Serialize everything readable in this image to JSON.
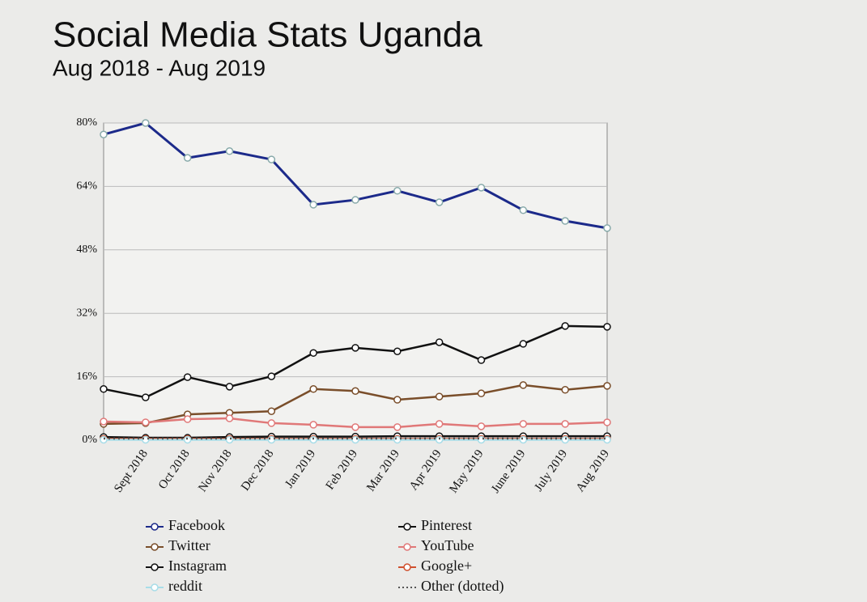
{
  "chart_data": {
    "type": "line",
    "title": "Social Media Stats Uganda",
    "subtitle": "Aug 2018 - Aug 2019",
    "categories": [
      null,
      "Sept 2018",
      "Oct 2018",
      "Nov 2018",
      "Dec 2018",
      "Jan 2019",
      "Feb 2019",
      "Mar 2019",
      "Apr 2019",
      "May 2019",
      "June 2019",
      "July 2019",
      "Aug 2019"
    ],
    "ylim": [
      0,
      80
    ],
    "yticks": [
      {
        "value": 0,
        "label": "0%"
      },
      {
        "value": 16,
        "label": "16%"
      },
      {
        "value": 32,
        "label": "32%"
      },
      {
        "value": 48,
        "label": "48%"
      },
      {
        "value": 64,
        "label": "64%"
      },
      {
        "value": 80,
        "label": "80%"
      }
    ],
    "grid": true,
    "series": [
      {
        "name": "Facebook",
        "color": "#1c2a8a",
        "values": [
          77.1,
          80,
          71.2,
          72.9,
          70.8,
          59.4,
          60.6,
          62.9,
          60,
          63.7,
          58,
          55.3,
          53.5
        ]
      },
      {
        "name": "Pinterest",
        "color": "#111111",
        "values": [
          12.9,
          10.8,
          15.9,
          13.5,
          16.1,
          22,
          23.3,
          22.4,
          24.7,
          20.2,
          24.3,
          28.8,
          28.6
        ]
      },
      {
        "name": "Twitter",
        "color": "#7a4e2a",
        "values": [
          4.1,
          4.3,
          6.5,
          6.9,
          7.3,
          12.9,
          12.4,
          10.2,
          11,
          11.8,
          13.9,
          12.7,
          13.7
        ]
      },
      {
        "name": "YouTube",
        "color": "#e07878",
        "values": [
          4.7,
          4.5,
          5.3,
          5.5,
          4.3,
          3.9,
          3.3,
          3.3,
          4.1,
          3.5,
          4.1,
          4.1,
          4.5
        ]
      },
      {
        "name": "Instagram",
        "color": "#111111",
        "values": [
          0.8,
          0.6,
          0.6,
          0.8,
          0.9,
          0.9,
          0.9,
          1,
          1,
          1,
          1,
          1,
          1
        ]
      },
      {
        "name": "Google+",
        "color": "#d0502e",
        "values": [
          0.3,
          0.3,
          0.3,
          0.3,
          0.3,
          0.3,
          0.3,
          0.3,
          0.3,
          0.3,
          0.3,
          0.3,
          0.3
        ]
      },
      {
        "name": "reddit",
        "color": "#a8dde8",
        "values": [
          0.1,
          0.1,
          0.1,
          0.1,
          0.1,
          0.1,
          0.1,
          0.1,
          0.1,
          0.1,
          0.1,
          0.1,
          0.1
        ]
      },
      {
        "name": "Other (dotted)",
        "color": "#555555",
        "style": "dotted",
        "values": [
          0.4,
          0.4,
          0.4,
          0.4,
          0.4,
          0.4,
          0.4,
          0.4,
          0.4,
          0.4,
          0.4,
          0.4,
          0.4
        ]
      }
    ]
  }
}
